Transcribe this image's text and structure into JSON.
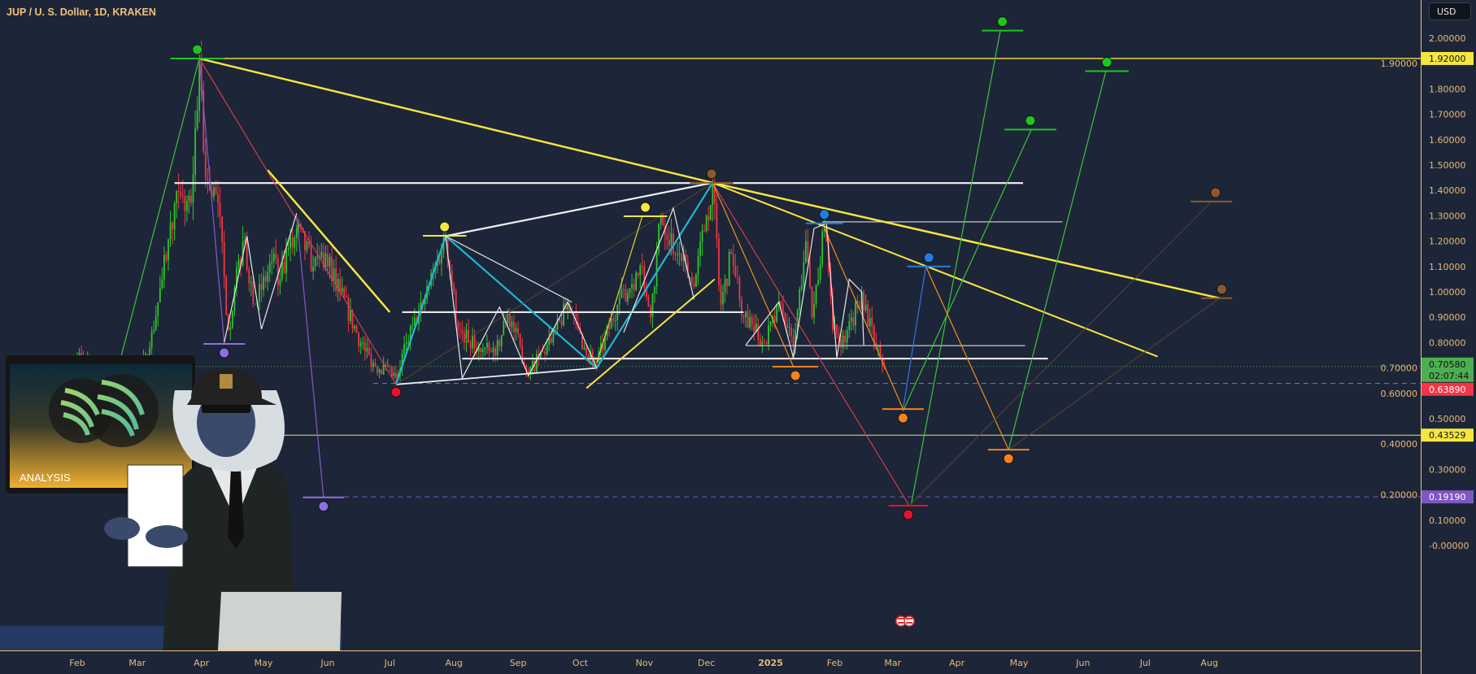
{
  "header": {
    "title": "JUP / U. S. Dollar, 1D, KRAKEN",
    "currency": "USD"
  },
  "colors": {
    "background": "#1d2538",
    "axis": "#e8c27a",
    "axis_text": "#e6bb77",
    "up": "#2ec52e",
    "down": "#f23645"
  },
  "chart_data": {
    "type": "candlestick",
    "title": "JUP / U. S. Dollar, 1D, KRAKEN",
    "y_scale": "linear",
    "ylim": [
      -0.05,
      2.15
    ],
    "xlim": [
      "2024-01-03",
      "2025-08-12"
    ],
    "y_ticks": [
      "2.00000",
      "1.90000",
      "1.80000",
      "1.70000",
      "1.60000",
      "1.50000",
      "1.40000",
      "1.30000",
      "1.20000",
      "1.10000",
      "1.00000",
      "0.90000",
      "0.80000",
      "0.70000",
      "0.60000",
      "0.50000",
      "0.40000",
      "0.30000",
      "0.20000",
      "0.10000",
      "-0.00000"
    ],
    "x_ticks": [
      {
        "label": "Feb",
        "date": "2024-02-01"
      },
      {
        "label": "Mar",
        "date": "2024-03-01"
      },
      {
        "label": "Apr",
        "date": "2024-04-01"
      },
      {
        "label": "May",
        "date": "2024-05-01"
      },
      {
        "label": "Jun",
        "date": "2024-06-01"
      },
      {
        "label": "Jul",
        "date": "2024-07-01"
      },
      {
        "label": "Aug",
        "date": "2024-08-01"
      },
      {
        "label": "Sep",
        "date": "2024-09-01"
      },
      {
        "label": "Oct",
        "date": "2024-10-01"
      },
      {
        "label": "Nov",
        "date": "2024-11-01"
      },
      {
        "label": "Dec",
        "date": "2024-12-01"
      },
      {
        "label": "2025",
        "date": "2025-01-01"
      },
      {
        "label": "Feb",
        "date": "2025-02-01"
      },
      {
        "label": "Mar",
        "date": "2025-03-01"
      },
      {
        "label": "Apr",
        "date": "2025-04-01"
      },
      {
        "label": "May",
        "date": "2025-05-01"
      },
      {
        "label": "Jun",
        "date": "2025-06-01"
      },
      {
        "label": "Jul",
        "date": "2025-07-01"
      },
      {
        "label": "Aug",
        "date": "2025-08-01"
      }
    ],
    "price_path": [
      [
        "2024-01-29",
        0.72
      ],
      [
        "2024-02-01",
        0.75
      ],
      [
        "2024-02-07",
        0.7
      ],
      [
        "2024-02-15",
        0.62
      ],
      [
        "2024-02-22",
        0.6
      ],
      [
        "2024-03-01",
        0.65
      ],
      [
        "2024-03-07",
        0.78
      ],
      [
        "2024-03-13",
        1.05
      ],
      [
        "2024-03-19",
        1.35
      ],
      [
        "2024-03-27",
        1.35
      ],
      [
        "2024-03-31",
        1.9
      ],
      [
        "2024-04-03",
        1.45
      ],
      [
        "2024-04-09",
        1.35
      ],
      [
        "2024-04-14",
        0.85
      ],
      [
        "2024-04-21",
        1.2
      ],
      [
        "2024-04-27",
        0.95
      ],
      [
        "2024-05-05",
        1.12
      ],
      [
        "2024-05-09",
        1.05
      ],
      [
        "2024-05-17",
        1.25
      ],
      [
        "2024-05-25",
        1.1
      ],
      [
        "2024-05-31",
        1.15
      ],
      [
        "2024-06-07",
        1.0
      ],
      [
        "2024-06-17",
        0.8
      ],
      [
        "2024-06-23",
        0.72
      ],
      [
        "2024-07-04",
        0.66
      ],
      [
        "2024-07-09",
        0.8
      ],
      [
        "2024-07-17",
        0.95
      ],
      [
        "2024-07-28",
        1.22
      ],
      [
        "2024-08-03",
        0.85
      ],
      [
        "2024-08-13",
        0.78
      ],
      [
        "2024-08-21",
        0.75
      ],
      [
        "2024-08-27",
        0.92
      ],
      [
        "2024-09-06",
        0.68
      ],
      [
        "2024-09-17",
        0.8
      ],
      [
        "2024-09-25",
        0.95
      ],
      [
        "2024-10-03",
        0.78
      ],
      [
        "2024-10-09",
        0.72
      ],
      [
        "2024-10-19",
        0.95
      ],
      [
        "2024-10-31",
        1.1
      ],
      [
        "2024-11-04",
        0.9
      ],
      [
        "2024-11-09",
        1.3
      ],
      [
        "2024-11-17",
        1.15
      ],
      [
        "2024-11-25",
        1.02
      ],
      [
        "2024-12-01",
        1.3
      ],
      [
        "2024-12-04",
        1.42
      ],
      [
        "2024-12-08",
        0.95
      ],
      [
        "2024-12-13",
        1.15
      ],
      [
        "2024-12-19",
        0.9
      ],
      [
        "2024-12-29",
        0.8
      ],
      [
        "2025-01-06",
        0.95
      ],
      [
        "2025-01-12",
        0.78
      ],
      [
        "2025-01-18",
        1.2
      ],
      [
        "2025-01-21",
        0.9
      ],
      [
        "2025-01-27",
        1.25
      ],
      [
        "2025-01-31",
        0.85
      ],
      [
        "2025-02-06",
        0.8
      ],
      [
        "2025-02-14",
        1.0
      ],
      [
        "2025-02-20",
        0.8
      ],
      [
        "2025-02-25",
        0.7058
      ]
    ],
    "price_tags": [
      {
        "value": "1.92000",
        "price": 1.92,
        "bg": "#f5e642",
        "fg": "#111"
      },
      {
        "value": "0.70580",
        "sub": "02:07:44",
        "price": 0.7058,
        "bg": "#4caf50",
        "fg": "#111"
      },
      {
        "value": "0.63890",
        "price": 0.6389,
        "bg": "#f23645",
        "fg": "#fff"
      },
      {
        "value": "0.43529",
        "price": 0.43529,
        "bg": "#f5e642",
        "fg": "#111"
      },
      {
        "value": "0.19190",
        "price": 0.1919,
        "bg": "#7e57c2",
        "fg": "#fff"
      }
    ],
    "levels": [
      {
        "price": 1.92,
        "from": "2024-03-31",
        "color": "#f5e642",
        "width": 1.3,
        "extend": "right"
      },
      {
        "price": 0.43529,
        "from": "2024-03-29",
        "color": "#e8e070",
        "width": 1,
        "extend": "right"
      },
      {
        "price": 0.1919,
        "from": "2024-06-09",
        "color": "#7e57c2",
        "width": 1,
        "dash": "6 5",
        "extend": "right"
      },
      {
        "price": 0.6389,
        "from": "2024-06-23",
        "color": "#7a8090",
        "width": 1,
        "dash": "6 5",
        "extend": "right"
      },
      {
        "price": 0.7058,
        "from": "2024-01-03",
        "color": "#4caf50",
        "width": 1,
        "dash": "1 3",
        "extend": "right"
      },
      {
        "price": 1.429,
        "from": "2024-03-19",
        "to": "2025-05-03",
        "color": "#e8e8e8",
        "width": 2.2
      },
      {
        "price": 0.92,
        "from": "2024-07-07",
        "to": "2024-12-19",
        "color": "#e8e8e8",
        "width": 2.2
      },
      {
        "price": 0.737,
        "from": "2024-08-05",
        "to": "2025-05-15",
        "color": "#e8e8e8",
        "width": 2.2
      },
      {
        "price": 1.276,
        "from": "2025-01-26",
        "to": "2025-05-22",
        "color": "#c8c8c8",
        "width": 1.2
      },
      {
        "price": 0.788,
        "from": "2024-12-20",
        "to": "2025-05-04",
        "color": "#c8c8c8",
        "width": 1.2
      }
    ],
    "trendlines": [
      {
        "points": [
          [
            "2024-03-31",
            1.92
          ],
          [
            "2024-12-04",
            1.43
          ]
        ],
        "color": "#f5e642",
        "width": 2.5
      },
      {
        "points": [
          [
            "2024-12-04",
            1.43
          ],
          [
            "2025-08-06",
            0.975
          ]
        ],
        "color": "#f5e642",
        "width": 2.5
      },
      {
        "points": [
          [
            "2024-12-04",
            1.43
          ],
          [
            "2025-07-07",
            0.745
          ]
        ],
        "color": "#f5e642",
        "width": 2
      },
      {
        "points": [
          [
            "2024-05-03",
            1.48
          ],
          [
            "2024-07-01",
            0.92
          ]
        ],
        "color": "#f5e642",
        "width": 2.5
      },
      {
        "points": [
          [
            "2024-10-04",
            0.62
          ],
          [
            "2024-12-05",
            1.05
          ]
        ],
        "color": "#f5e642",
        "width": 2
      },
      {
        "points": [
          [
            "2024-07-28",
            1.22
          ],
          [
            "2024-12-04",
            1.43
          ]
        ],
        "color": "#f0f0f0",
        "width": 2.2
      },
      {
        "points": [
          [
            "2024-07-04",
            0.635
          ],
          [
            "2024-10-09",
            0.7
          ]
        ],
        "color": "#f0f0f0",
        "width": 1.8
      },
      {
        "points": [
          [
            "2024-07-04",
            0.635
          ],
          [
            "2024-07-28",
            1.22
          ],
          [
            "2024-10-09",
            0.7
          ]
        ],
        "color": "#1fb8d6",
        "width": 2.2
      },
      {
        "points": [
          [
            "2024-10-09",
            0.7
          ],
          [
            "2024-12-04",
            1.43
          ]
        ],
        "color": "#1fb8d6",
        "width": 2.2
      },
      {
        "points": [
          [
            "2024-02-22",
            0.74
          ],
          [
            "2024-03-31",
            1.92
          ]
        ],
        "color": "#3cc43c",
        "width": 1.2
      },
      {
        "points": [
          [
            "2025-03-10",
            0.164
          ],
          [
            "2025-04-22",
            2.03
          ]
        ],
        "color": "#3cc43c",
        "width": 1.2
      },
      {
        "points": [
          [
            "2025-04-26",
            0.378
          ],
          [
            "2025-06-12",
            1.87
          ]
        ],
        "color": "#3cc43c",
        "width": 1.2
      },
      {
        "points": [
          [
            "2025-03-06",
            0.53
          ],
          [
            "2025-05-07",
            1.64
          ]
        ],
        "color": "#3cc43c",
        "width": 1.2
      },
      {
        "points": [
          [
            "2024-03-31",
            1.92
          ],
          [
            "2024-07-04",
            0.635
          ]
        ],
        "color": "#e0404f",
        "width": 1.1
      },
      {
        "points": [
          [
            "2024-12-04",
            1.43
          ],
          [
            "2025-03-09",
            0.157
          ]
        ],
        "color": "#e0404f",
        "width": 1.1
      },
      {
        "points": [
          [
            "2024-03-31",
            1.92
          ],
          [
            "2024-04-12",
            0.8
          ]
        ],
        "color": "#7e57c2",
        "width": 1.3
      },
      {
        "points": [
          [
            "2024-05-17",
            1.3
          ],
          [
            "2024-05-30",
            0.19
          ]
        ],
        "color": "#7e57c2",
        "width": 1.3
      },
      {
        "points": [
          [
            "2024-12-04",
            1.43
          ],
          [
            "2025-01-12",
            0.705
          ]
        ],
        "color": "#f0901c",
        "width": 1.2
      },
      {
        "points": [
          [
            "2025-01-26",
            1.27
          ],
          [
            "2025-03-06",
            0.538
          ]
        ],
        "color": "#f0901c",
        "width": 1.2
      },
      {
        "points": [
          [
            "2025-03-17",
            1.1
          ],
          [
            "2025-04-26",
            0.378
          ]
        ],
        "color": "#f0901c",
        "width": 1.2
      },
      {
        "points": [
          [
            "2025-03-06",
            0.538
          ],
          [
            "2025-03-17",
            1.1
          ]
        ],
        "color": "#2f6fe0",
        "width": 1.3
      },
      {
        "points": [
          [
            "2024-07-04",
            0.635
          ],
          [
            "2024-12-04",
            1.43
          ]
        ],
        "color": "#5a4630",
        "width": 1
      },
      {
        "points": [
          [
            "2025-03-09",
            0.157
          ],
          [
            "2025-08-02",
            1.356
          ]
        ],
        "color": "#5a4630",
        "width": 1
      },
      {
        "points": [
          [
            "2025-04-26",
            0.378
          ],
          [
            "2025-08-06",
            0.975
          ]
        ],
        "color": "#5a4630",
        "width": 1
      },
      {
        "points": [
          [
            "2024-10-09",
            0.72
          ],
          [
            "2024-10-31",
            1.298
          ]
        ],
        "color": "#e6d23a",
        "width": 1.2
      },
      {
        "points": [
          [
            "2024-04-12",
            0.8
          ],
          [
            "2024-04-23",
            1.22
          ],
          [
            "2024-04-30",
            0.853
          ],
          [
            "2024-05-17",
            1.31
          ]
        ],
        "color": "#e8e8e8",
        "width": 1.2
      },
      {
        "points": [
          [
            "2024-07-28",
            1.22
          ],
          [
            "2024-08-05",
            0.66
          ],
          [
            "2024-08-23",
            0.94
          ],
          [
            "2024-09-06",
            0.67
          ],
          [
            "2024-09-25",
            0.96
          ],
          [
            "2024-10-09",
            0.7
          ]
        ],
        "color": "#e8e8e8",
        "width": 1.2
      },
      {
        "points": [
          [
            "2024-07-28",
            1.22
          ],
          [
            "2024-09-27",
            0.96
          ]
        ],
        "color": "#e8e8e8",
        "width": 1.2
      },
      {
        "points": [
          [
            "2024-10-22",
            0.84
          ],
          [
            "2024-11-15",
            1.33
          ],
          [
            "2024-11-25",
            0.97
          ]
        ],
        "color": "#e8e8e8",
        "width": 1.2
      },
      {
        "points": [
          [
            "2024-12-20",
            0.79
          ],
          [
            "2025-01-05",
            0.96
          ],
          [
            "2025-01-12",
            0.74
          ],
          [
            "2025-01-22",
            1.25
          ],
          [
            "2025-01-28",
            1.27
          ],
          [
            "2025-02-02",
            0.74
          ],
          [
            "2025-02-08",
            1.05
          ],
          [
            "2025-02-14",
            1.0
          ],
          [
            "2025-02-15",
            0.79
          ]
        ],
        "color": "#e8e8e8",
        "width": 1.2
      }
    ],
    "targets": [
      {
        "from": "2024-03-17",
        "to": "2024-04-12",
        "price": 1.92,
        "color": "#1ec51e",
        "marker": "above"
      },
      {
        "from": "2025-04-13",
        "to": "2025-05-03",
        "price": 2.03,
        "color": "#1ec51e",
        "marker": "above"
      },
      {
        "from": "2025-06-02",
        "to": "2025-06-23",
        "price": 1.87,
        "color": "#1ec51e",
        "marker": "above"
      },
      {
        "from": "2025-04-24",
        "to": "2025-05-19",
        "price": 1.64,
        "color": "#1ec51e",
        "marker": "above"
      },
      {
        "from": "2024-11-23",
        "to": "2024-12-14",
        "price": 1.43,
        "color": "#8b5a2b",
        "marker": "above"
      },
      {
        "from": "2025-07-23",
        "to": "2025-08-12",
        "price": 1.356,
        "color": "#8b5a2b",
        "marker": "above",
        "marker_at": "2025-08-04"
      },
      {
        "from": "2025-07-28",
        "to": "2025-08-12",
        "price": 0.975,
        "color": "#8b5a2b",
        "marker": "above",
        "marker_at": "2025-08-07"
      },
      {
        "from": "2024-07-17",
        "to": "2024-08-07",
        "price": 1.221,
        "color": "#f5e642",
        "marker": "above"
      },
      {
        "from": "2024-10-22",
        "to": "2024-11-12",
        "price": 1.298,
        "color": "#f5e642",
        "marker": "above"
      },
      {
        "from": "2025-01-18",
        "to": "2025-02-05",
        "price": 1.27,
        "color": "#1f7fe0",
        "marker": "above"
      },
      {
        "from": "2025-03-08",
        "to": "2025-03-29",
        "price": 1.1,
        "color": "#1f7fe0",
        "marker": "above"
      },
      {
        "from": "2024-04-02",
        "to": "2024-04-22",
        "price": 0.795,
        "color": "#8e6fe6",
        "marker": "below"
      },
      {
        "from": "2024-05-20",
        "to": "2024-06-09",
        "price": 0.19,
        "color": "#8e6fe6",
        "marker": "below"
      },
      {
        "from": "2025-02-27",
        "to": "2025-03-18",
        "price": 0.157,
        "color": "#e8102a",
        "marker": "below"
      },
      {
        "from": "2024-06-26",
        "to": "2024-07-12",
        "price": 0.64,
        "color": "#e8102a",
        "marker": "below",
        "no_line": true
      },
      {
        "from": "2025-01-02",
        "to": "2025-01-24",
        "price": 0.705,
        "color": "#f58220",
        "marker": "below"
      },
      {
        "from": "2025-02-24",
        "to": "2025-03-16",
        "price": 0.538,
        "color": "#f58220",
        "marker": "below"
      },
      {
        "from": "2025-04-16",
        "to": "2025-05-06",
        "price": 0.378,
        "color": "#f58220",
        "marker": "below"
      }
    ],
    "events": [
      {
        "icon": "us-flag-icon",
        "date": "2025-03-05"
      },
      {
        "icon": "us-flag-icon",
        "date": "2025-03-09"
      }
    ]
  },
  "overlay": {
    "laptop_caption": "ANALYSIS"
  }
}
